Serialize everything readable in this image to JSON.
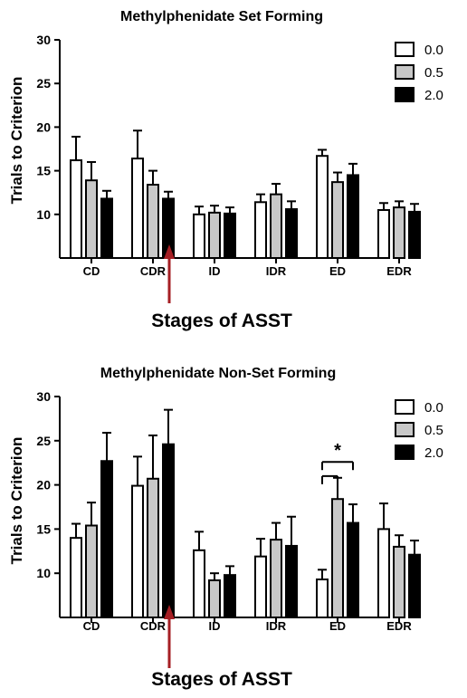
{
  "chart_data": [
    {
      "type": "bar",
      "title": "Methylphenidate Set Forming",
      "xlabel": "Stages of ASST",
      "ylabel": "Trials to Criterion",
      "ylim": [
        5,
        30
      ],
      "yticks": [
        10,
        15,
        20,
        25,
        30
      ],
      "categories": [
        "CD",
        "CDR",
        "ID",
        "IDR",
        "ED",
        "EDR"
      ],
      "series": [
        {
          "name": "0.0",
          "color": "#ffffff",
          "values": [
            16.2,
            16.4,
            10.0,
            11.4,
            16.7,
            10.5
          ],
          "errors": [
            2.7,
            3.2,
            0.9,
            0.9,
            0.7,
            0.8
          ]
        },
        {
          "name": "0.5",
          "color": "#c8c8c8",
          "values": [
            13.9,
            13.4,
            10.2,
            12.3,
            13.7,
            10.8
          ],
          "errors": [
            2.1,
            1.6,
            0.8,
            1.2,
            1.1,
            0.7
          ]
        },
        {
          "name": "2.0",
          "color": "#000000",
          "values": [
            11.8,
            11.8,
            10.1,
            10.6,
            14.5,
            10.3
          ],
          "errors": [
            0.9,
            0.8,
            0.7,
            0.9,
            1.3,
            0.9
          ]
        }
      ],
      "legend": "top-right",
      "arrow_after_category": "CDR",
      "arrow_color": "#a51f24"
    },
    {
      "type": "bar",
      "title": "Methylphenidate Non-Set Forming",
      "xlabel": "Stages of ASST",
      "ylabel": "Trials to Criterion",
      "ylim": [
        5,
        30
      ],
      "yticks": [
        10,
        15,
        20,
        25,
        30
      ],
      "categories": [
        "CD",
        "CDR",
        "ID",
        "IDR",
        "ED",
        "EDR"
      ],
      "series": [
        {
          "name": "0.0",
          "color": "#ffffff",
          "values": [
            14.0,
            19.9,
            12.6,
            11.9,
            9.3,
            15.0
          ],
          "errors": [
            1.6,
            3.3,
            2.1,
            2.0,
            1.1,
            2.9
          ]
        },
        {
          "name": "0.5",
          "color": "#c8c8c8",
          "values": [
            15.4,
            20.7,
            9.2,
            13.8,
            18.4,
            13.0
          ],
          "errors": [
            2.6,
            4.9,
            0.8,
            1.9,
            2.4,
            1.3
          ]
        },
        {
          "name": "2.0",
          "color": "#000000",
          "values": [
            22.7,
            24.6,
            9.8,
            13.1,
            15.7,
            12.1
          ],
          "errors": [
            3.2,
            3.9,
            1.0,
            3.3,
            2.1,
            1.6
          ]
        }
      ],
      "legend": "top-right",
      "arrow_after_category": "CDR",
      "arrow_color": "#a51f24",
      "significance": {
        "category": "ED",
        "label": "*",
        "pairs": [
          [
            "0.0",
            "0.5"
          ],
          [
            "0.0",
            "2.0"
          ]
        ]
      }
    }
  ]
}
